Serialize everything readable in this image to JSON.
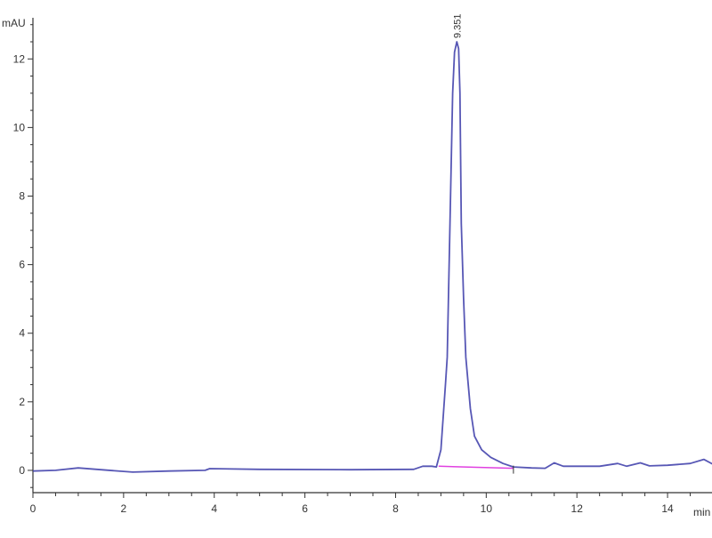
{
  "chart_data": {
    "type": "line",
    "title": "",
    "xlabel": "min",
    "ylabel": "mAU",
    "xlim": [
      0,
      15
    ],
    "ylim": [
      -0.65,
      13.2
    ],
    "x_ticks": [
      0,
      2,
      4,
      6,
      8,
      10,
      12,
      14
    ],
    "y_ticks": [
      0,
      2,
      4,
      6,
      8,
      10,
      12
    ],
    "grid": false,
    "colors": {
      "trace": "#3a3aa8",
      "baseline": "#e040e0",
      "axis": "#333333"
    },
    "series": [
      {
        "x": [
          0,
          0.5,
          1.0,
          1.5,
          2.2,
          3.0,
          3.8,
          3.9,
          5.0,
          7.0,
          8.4,
          8.6,
          8.8,
          8.9,
          9.0,
          9.1,
          9.14,
          9.2,
          9.26,
          9.3,
          9.351,
          9.39,
          9.42,
          9.45,
          9.5,
          9.55,
          9.65,
          9.74,
          9.9,
          10.1,
          10.37,
          10.6,
          11.0,
          11.3,
          11.5,
          11.7,
          12.5,
          12.9,
          13.1,
          13.4,
          13.6,
          14.0,
          14.5,
          14.8,
          15.0
        ],
        "y": [
          -0.02,
          0.0,
          0.07,
          0.02,
          -0.05,
          -0.02,
          0.0,
          0.05,
          0.03,
          0.02,
          0.03,
          0.12,
          0.12,
          0.1,
          0.6,
          2.5,
          3.3,
          7.2,
          11.0,
          12.2,
          12.5,
          12.3,
          11.0,
          7.2,
          5.0,
          3.3,
          1.8,
          1.0,
          0.6,
          0.38,
          0.2,
          0.1,
          0.07,
          0.06,
          0.22,
          0.12,
          0.12,
          0.2,
          0.12,
          0.22,
          0.13,
          0.15,
          0.2,
          0.32,
          0.18
        ]
      }
    ],
    "integration_baseline": {
      "x": [
        8.95,
        10.6
      ],
      "y": [
        0.12,
        0.06
      ]
    },
    "annotations": [
      {
        "text": "9.351",
        "x": 9.351,
        "y": 12.5
      }
    ]
  }
}
